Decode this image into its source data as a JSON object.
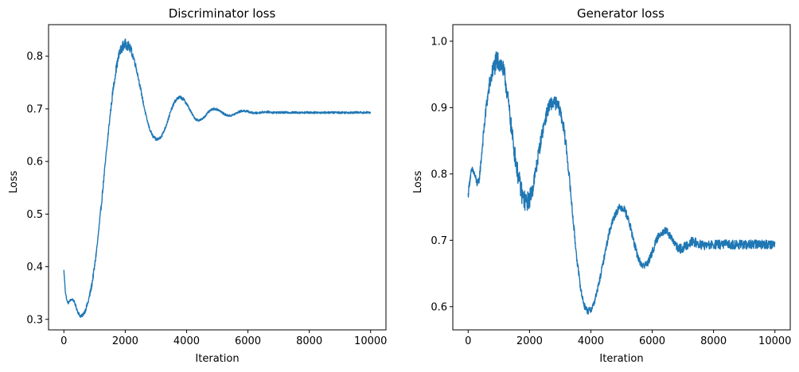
{
  "chart_data": [
    {
      "type": "line",
      "title": "Discriminator loss",
      "xlabel": "Iteration",
      "ylabel": "Loss",
      "xlim": [
        -500,
        10500
      ],
      "ylim": [
        0.28,
        0.86
      ],
      "xticks": [
        0,
        2000,
        4000,
        6000,
        8000,
        10000
      ],
      "yticks": [
        0.3,
        0.4,
        0.5,
        0.6,
        0.7,
        0.8
      ],
      "yprecision": 1,
      "grid": false,
      "legend": "none",
      "color": "#1f77b4",
      "series": [
        {
          "x": [
            0,
            50,
            100,
            150,
            200,
            250,
            300,
            350,
            400,
            450,
            500,
            550,
            600,
            700,
            800,
            900,
            1000,
            1100,
            1200,
            1300,
            1400,
            1500,
            1600,
            1700,
            1800,
            1900,
            2000,
            2100,
            2200,
            2300,
            2400,
            2500,
            2600,
            2700,
            2800,
            2900,
            3000,
            3100,
            3200,
            3300,
            3400,
            3500,
            3600,
            3700,
            3800,
            3900,
            4000,
            4100,
            4200,
            4300,
            4400,
            4500,
            4600,
            4700,
            4800,
            4900,
            5000,
            5100,
            5200,
            5300,
            5400,
            5500,
            5600,
            5700,
            5800,
            5900,
            6000,
            6100,
            6200,
            6300,
            6400,
            6500,
            6600,
            6700,
            6800,
            7000,
            7500,
            8000,
            8500,
            9000,
            9500,
            10000
          ],
          "y": [
            0.393,
            0.352,
            0.335,
            0.331,
            0.336,
            0.338,
            0.337,
            0.332,
            0.323,
            0.315,
            0.309,
            0.306,
            0.307,
            0.317,
            0.335,
            0.362,
            0.4,
            0.448,
            0.505,
            0.566,
            0.626,
            0.684,
            0.735,
            0.775,
            0.803,
            0.818,
            0.823,
            0.82,
            0.81,
            0.792,
            0.767,
            0.738,
            0.708,
            0.681,
            0.661,
            0.648,
            0.642,
            0.643,
            0.65,
            0.663,
            0.68,
            0.698,
            0.712,
            0.72,
            0.722,
            0.718,
            0.71,
            0.699,
            0.688,
            0.68,
            0.678,
            0.68,
            0.686,
            0.693,
            0.698,
            0.7,
            0.699,
            0.696,
            0.691,
            0.688,
            0.687,
            0.688,
            0.691,
            0.694,
            0.696,
            0.696,
            0.695,
            0.693,
            0.692,
            0.692,
            0.693,
            0.694,
            0.694,
            0.694,
            0.693,
            0.693,
            0.693,
            0.693,
            0.693,
            0.693,
            0.693,
            0.693
          ],
          "noise": [
            0.002,
            0.002,
            0.002,
            0.002,
            0.002,
            0.002,
            0.002,
            0.002,
            0.003,
            0.003,
            0.003,
            0.003,
            0.003,
            0.004,
            0.005,
            0.006,
            0.006,
            0.006,
            0.006,
            0.006,
            0.006,
            0.006,
            0.007,
            0.008,
            0.009,
            0.01,
            0.01,
            0.009,
            0.008,
            0.006,
            0.005,
            0.004,
            0.004,
            0.003,
            0.003,
            0.003,
            0.003,
            0.003,
            0.003,
            0.003,
            0.003,
            0.003,
            0.003,
            0.003,
            0.003,
            0.003,
            0.003,
            0.002,
            0.002,
            0.002,
            0.002,
            0.002,
            0.002,
            0.002,
            0.002,
            0.002,
            0.002,
            0.002,
            0.002,
            0.002,
            0.002,
            0.002,
            0.002,
            0.002,
            0.002,
            0.002,
            0.002,
            0.002,
            0.002,
            0.002,
            0.002,
            0.002,
            0.002,
            0.002,
            0.002,
            0.002,
            0.002,
            0.002,
            0.002,
            0.002,
            0.002,
            0.002
          ]
        }
      ]
    },
    {
      "type": "line",
      "title": "Generator loss",
      "xlabel": "Iteration",
      "ylabel": "Loss",
      "xlim": [
        -500,
        10500
      ],
      "ylim": [
        0.565,
        1.025
      ],
      "xticks": [
        0,
        2000,
        4000,
        6000,
        8000,
        10000
      ],
      "yticks": [
        0.6,
        0.7,
        0.8,
        0.9,
        1.0
      ],
      "yprecision": 1,
      "grid": false,
      "legend": "none",
      "color": "#1f77b4",
      "series": [
        {
          "x": [
            0,
            50,
            100,
            150,
            200,
            250,
            300,
            350,
            400,
            500,
            600,
            700,
            800,
            900,
            1000,
            1100,
            1200,
            1300,
            1400,
            1500,
            1600,
            1700,
            1800,
            1900,
            2000,
            2100,
            2200,
            2300,
            2400,
            2500,
            2600,
            2700,
            2800,
            2900,
            3000,
            3100,
            3200,
            3300,
            3400,
            3500,
            3600,
            3700,
            3800,
            3900,
            4000,
            4100,
            4200,
            4300,
            4400,
            4500,
            4600,
            4700,
            4800,
            4900,
            5000,
            5100,
            5200,
            5300,
            5400,
            5500,
            5600,
            5700,
            5800,
            5900,
            6000,
            6100,
            6200,
            6300,
            6400,
            6500,
            6600,
            6700,
            6800,
            6900,
            7000,
            7100,
            7200,
            7300,
            7400,
            7500,
            7700,
            8000,
            8500,
            9000,
            9500,
            10000
          ],
          "y": [
            0.768,
            0.79,
            0.802,
            0.806,
            0.8,
            0.792,
            0.785,
            0.788,
            0.81,
            0.86,
            0.905,
            0.935,
            0.955,
            0.968,
            0.97,
            0.963,
            0.945,
            0.912,
            0.872,
            0.836,
            0.805,
            0.78,
            0.762,
            0.757,
            0.762,
            0.778,
            0.803,
            0.832,
            0.858,
            0.88,
            0.897,
            0.906,
            0.908,
            0.905,
            0.895,
            0.873,
            0.84,
            0.793,
            0.742,
            0.692,
            0.65,
            0.618,
            0.6,
            0.593,
            0.595,
            0.605,
            0.622,
            0.643,
            0.666,
            0.69,
            0.712,
            0.728,
            0.74,
            0.748,
            0.75,
            0.746,
            0.735,
            0.718,
            0.698,
            0.68,
            0.667,
            0.662,
            0.663,
            0.67,
            0.682,
            0.695,
            0.706,
            0.712,
            0.714,
            0.712,
            0.705,
            0.697,
            0.69,
            0.687,
            0.688,
            0.692,
            0.696,
            0.698,
            0.697,
            0.694,
            0.692,
            0.693,
            0.694,
            0.693,
            0.694,
            0.694
          ],
          "noise": [
            0.006,
            0.006,
            0.006,
            0.006,
            0.006,
            0.006,
            0.006,
            0.006,
            0.007,
            0.008,
            0.01,
            0.012,
            0.014,
            0.016,
            0.016,
            0.015,
            0.014,
            0.013,
            0.013,
            0.014,
            0.015,
            0.016,
            0.016,
            0.015,
            0.014,
            0.013,
            0.012,
            0.011,
            0.01,
            0.01,
            0.01,
            0.01,
            0.01,
            0.01,
            0.01,
            0.01,
            0.009,
            0.008,
            0.007,
            0.006,
            0.006,
            0.005,
            0.005,
            0.005,
            0.005,
            0.005,
            0.005,
            0.005,
            0.005,
            0.005,
            0.006,
            0.006,
            0.006,
            0.006,
            0.006,
            0.006,
            0.006,
            0.006,
            0.006,
            0.006,
            0.006,
            0.006,
            0.006,
            0.006,
            0.006,
            0.006,
            0.006,
            0.006,
            0.006,
            0.006,
            0.006,
            0.006,
            0.006,
            0.007,
            0.007,
            0.007,
            0.007,
            0.007,
            0.007,
            0.007,
            0.007,
            0.007,
            0.007,
            0.007,
            0.007,
            0.007
          ]
        }
      ]
    }
  ]
}
